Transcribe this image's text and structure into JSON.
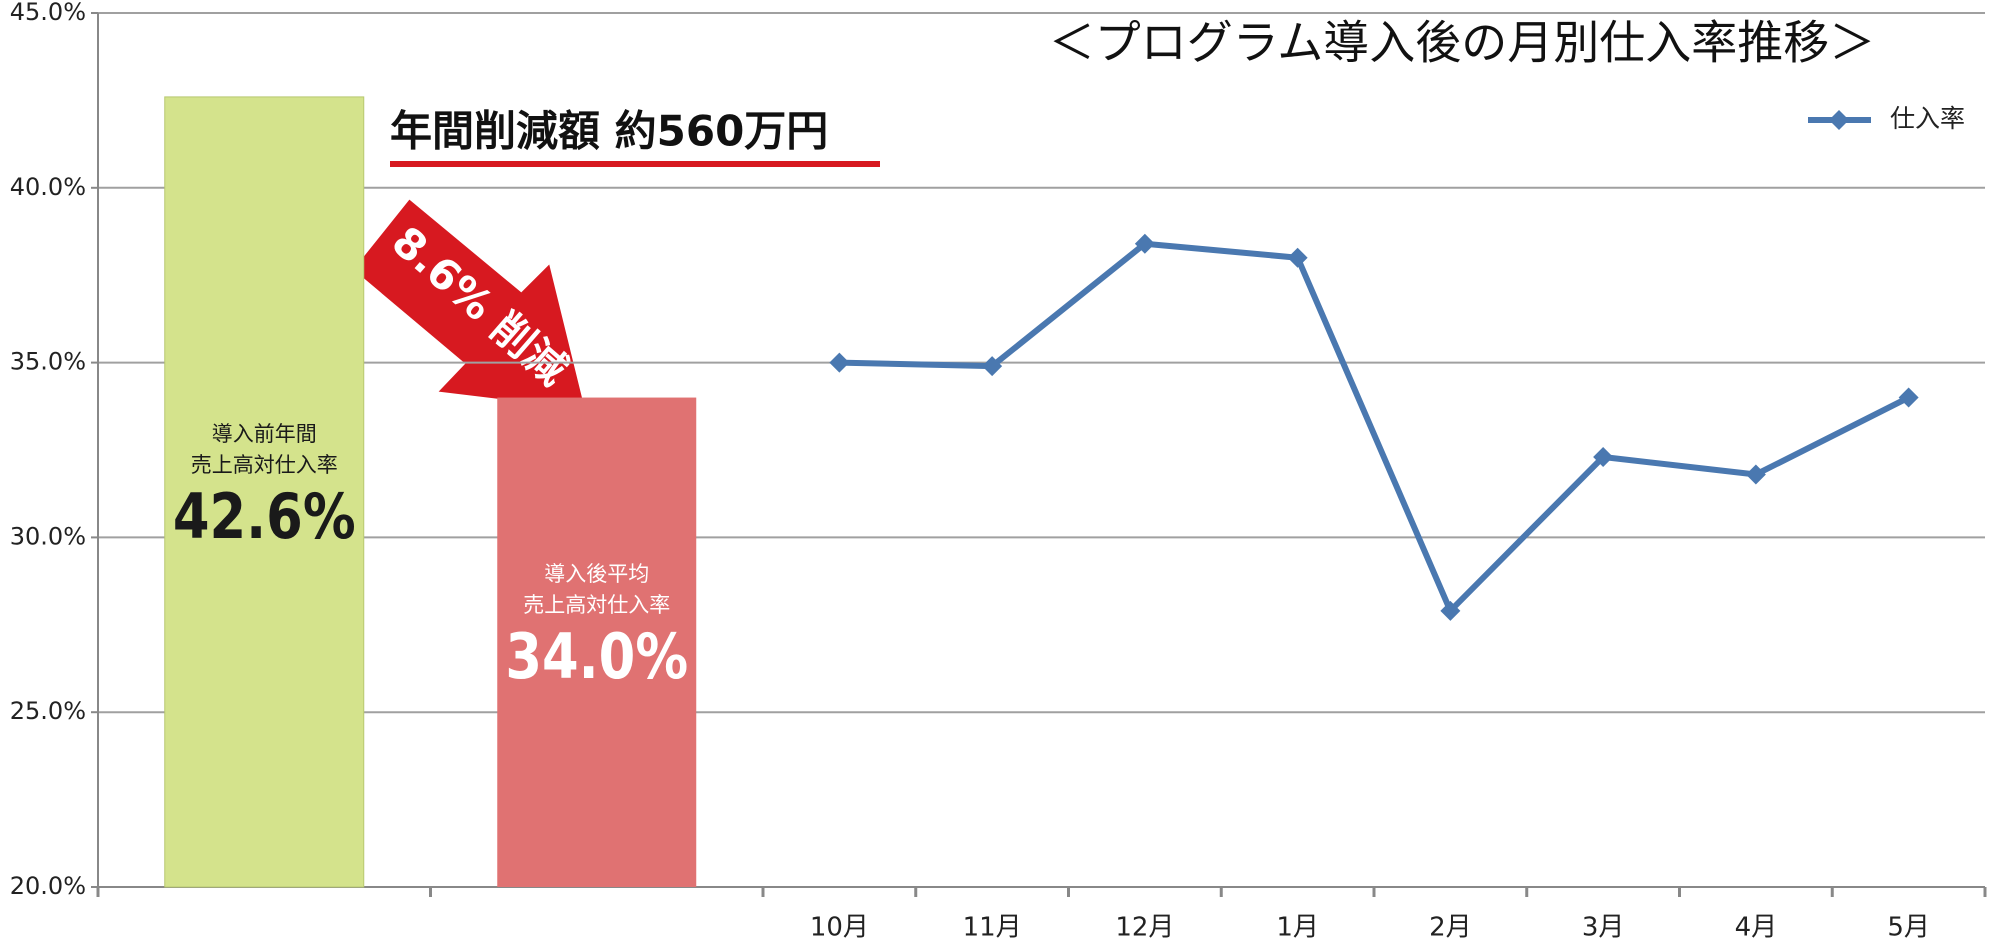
{
  "chart_data": {
    "type": "bar-line",
    "title": "＜プログラム導入後の月別仕入率推移＞",
    "annotation": "年間削減額 約560万円",
    "arrow_label": "8.6% 削減",
    "categories": [
      null,
      null,
      "10月",
      "11月",
      "12月",
      "1月",
      "2月",
      "3月",
      "4月",
      "5月"
    ],
    "bars": {
      "values": [
        42.6,
        34.0,
        null,
        null,
        null,
        null,
        null,
        null,
        null,
        null
      ],
      "value_labels": [
        "42.6%",
        "34.0%",
        null,
        null,
        null,
        null,
        null,
        null,
        null,
        null
      ],
      "colors": [
        "#d4e38c",
        "#e07272"
      ],
      "label_colors": [
        "#1a1a1a",
        "#ffffff"
      ],
      "captions": [
        [
          "導入前年間",
          "売上高対仕入率"
        ],
        [
          "導入後平均",
          "売上高対仕入率"
        ]
      ]
    },
    "series": [
      {
        "name": "仕入率",
        "color": "#4a78b0",
        "values": [
          null,
          null,
          35.0,
          34.9,
          38.4,
          38.0,
          27.9,
          32.3,
          31.8,
          34.0
        ]
      }
    ],
    "ylim": [
      20,
      45
    ],
    "yticks": [
      {
        "value": 20,
        "label": "20.0%"
      },
      {
        "value": 25,
        "label": "25.0%"
      },
      {
        "value": 30,
        "label": "30.0%"
      },
      {
        "value": 35,
        "label": "35.0%"
      },
      {
        "value": 40,
        "label": "40.0%"
      },
      {
        "value": 45,
        "label": "45.0%"
      }
    ],
    "grid": true,
    "legend": "top-right"
  }
}
